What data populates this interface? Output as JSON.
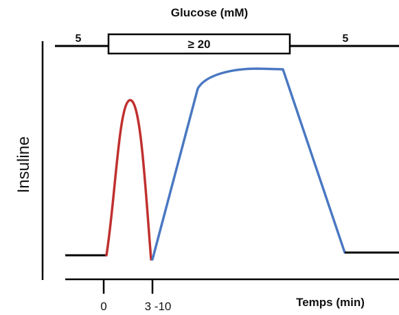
{
  "title": "Glucose (mM)",
  "glucose_protocol": {
    "before": "5",
    "during": "≥ 20",
    "after": "5"
  },
  "y_label": "Insuline",
  "x_label": "Temps (min)",
  "x_ticks": [
    "0",
    "3 -10"
  ],
  "colors": {
    "first_phase": "#c0302f",
    "second_phase": "#4a78c2",
    "baseline": "#000000"
  }
}
